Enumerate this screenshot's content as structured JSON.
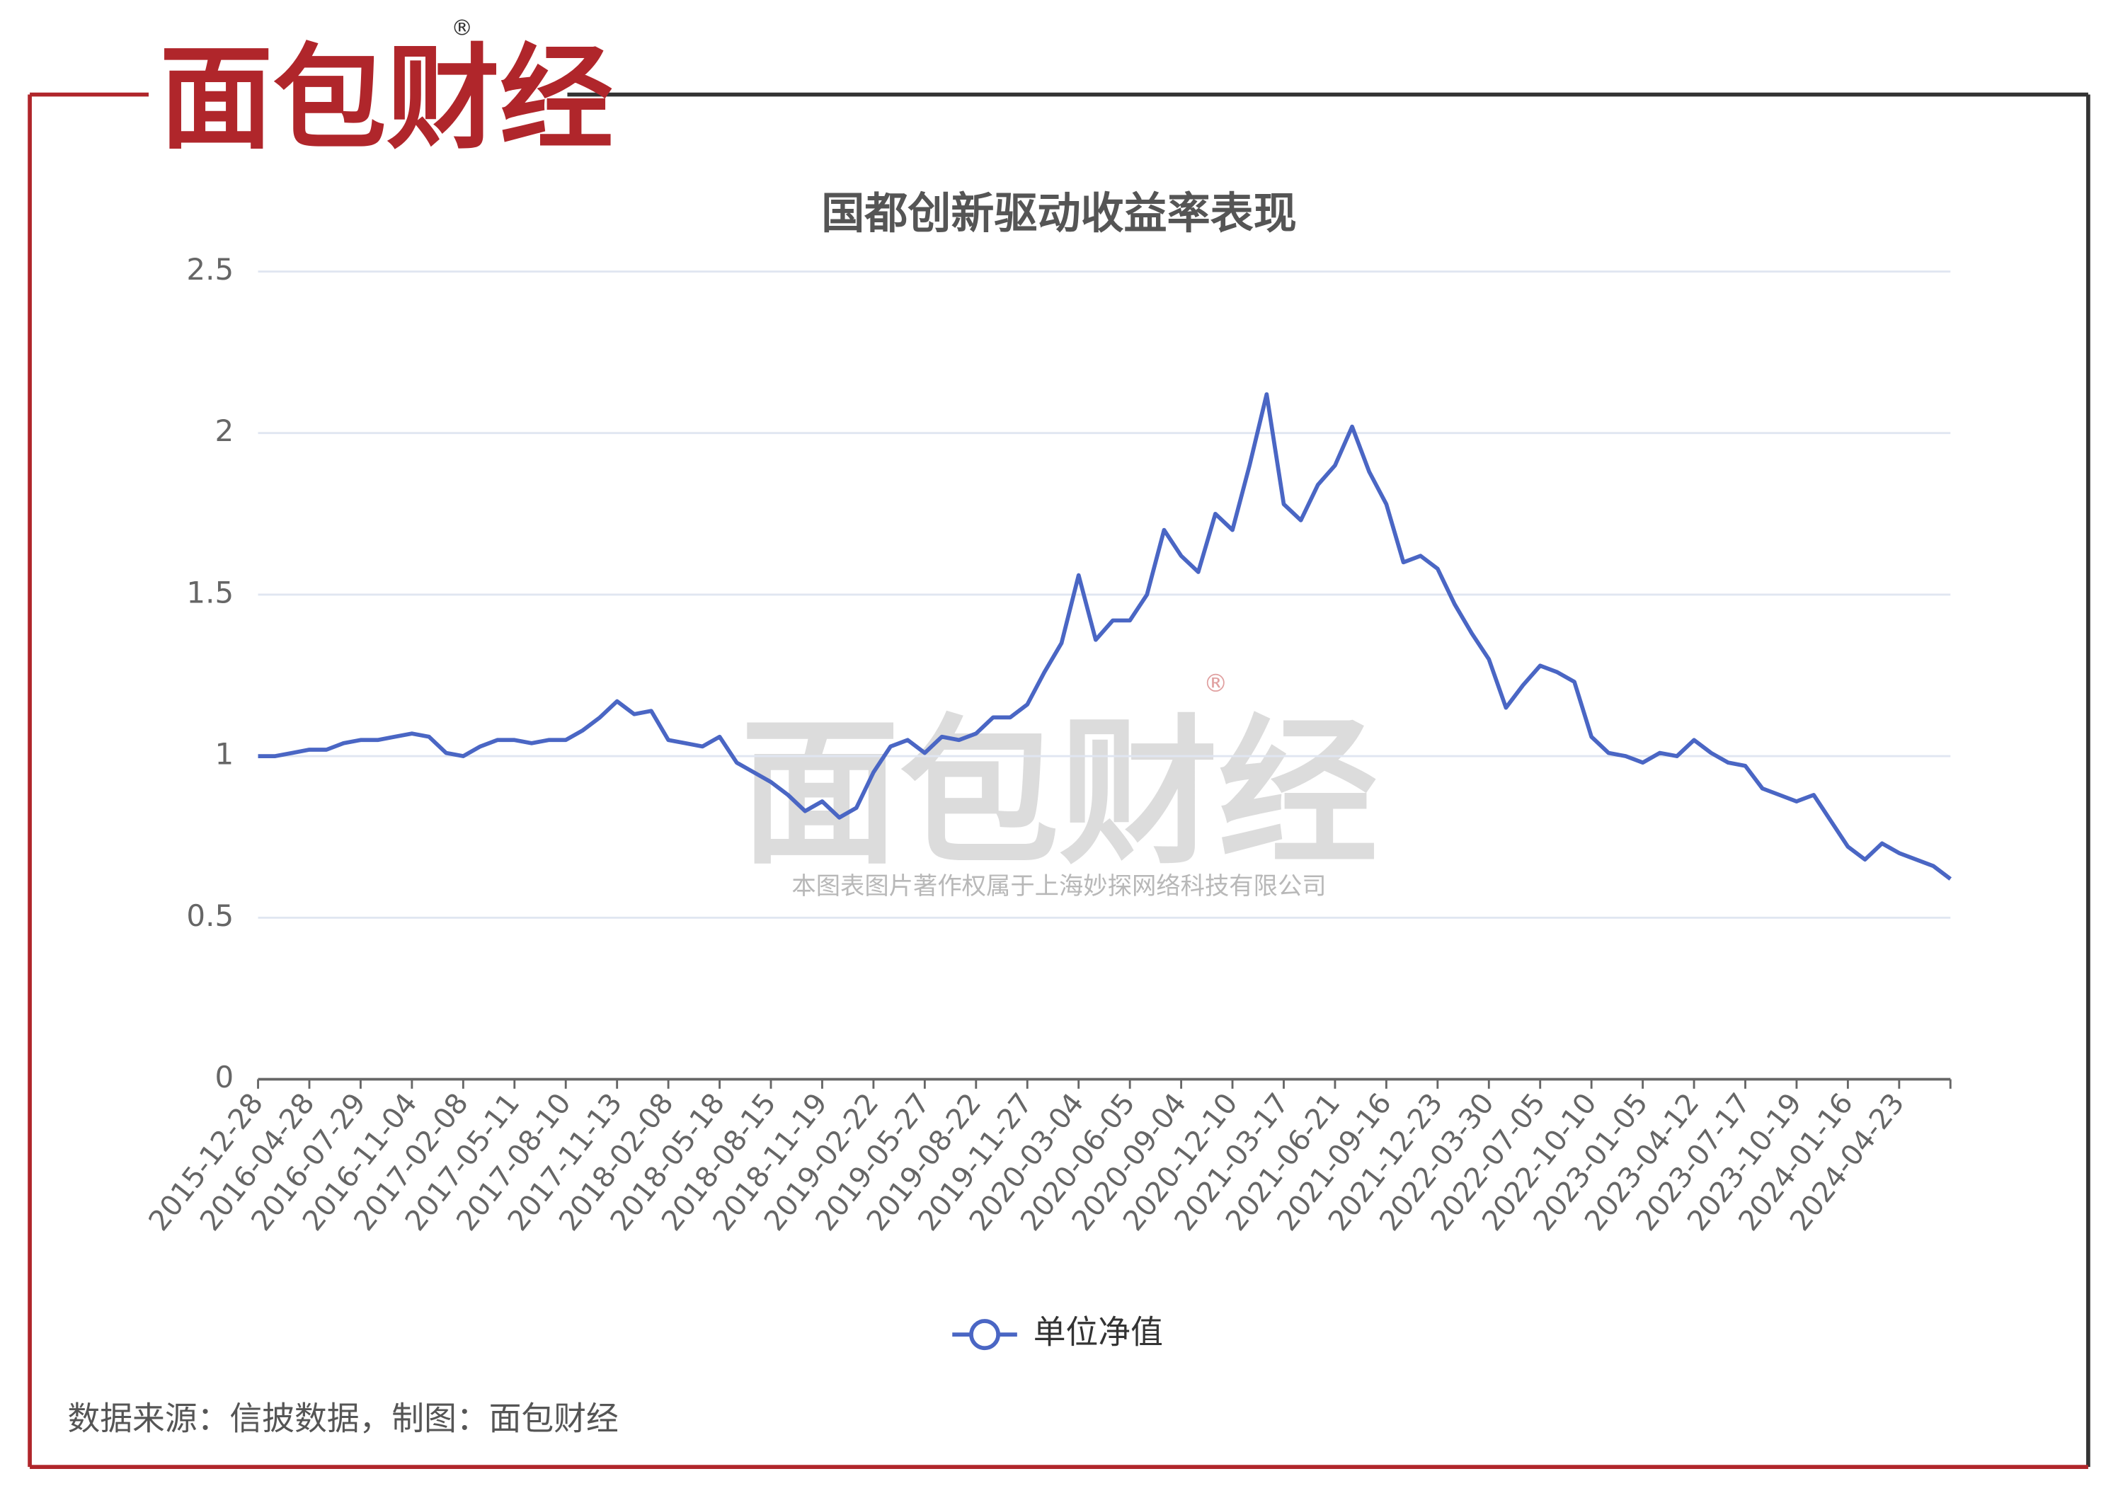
{
  "brand": {
    "logo": "面包财经",
    "registered": "®"
  },
  "chart_data": {
    "type": "line",
    "title": "国都创新驱动收益率表现",
    "categories": [
      "2015-12-28",
      null,
      null,
      "2016-04-28",
      null,
      null,
      "2016-07-29",
      null,
      null,
      "2016-11-04",
      null,
      null,
      "2017-02-08",
      null,
      null,
      "2017-05-11",
      null,
      null,
      "2017-08-10",
      null,
      null,
      "2017-11-13",
      null,
      null,
      "2018-02-08",
      null,
      null,
      "2018-05-18",
      null,
      null,
      "2018-08-15",
      null,
      null,
      "2018-11-19",
      null,
      null,
      "2019-02-22",
      null,
      null,
      "2019-05-27",
      null,
      null,
      "2019-08-22",
      null,
      null,
      "2019-11-27",
      null,
      null,
      "2020-03-04",
      null,
      null,
      "2020-06-05",
      null,
      null,
      "2020-09-04",
      null,
      null,
      "2020-12-10",
      null,
      null,
      "2021-03-17",
      null,
      null,
      "2021-06-21",
      null,
      null,
      "2021-09-16",
      null,
      null,
      "2021-12-23",
      null,
      null,
      "2022-03-30",
      null,
      null,
      "2022-07-05",
      null,
      null,
      "2022-10-10",
      null,
      null,
      "2023-01-05",
      null,
      null,
      "2023-04-12",
      null,
      null,
      "2023-07-17",
      null,
      null,
      "2023-10-19",
      null,
      null,
      "2024-01-16",
      null,
      null,
      "2024-04-23",
      null,
      null,
      null
    ],
    "series": [
      {
        "name": "单位净值",
        "color": "#4a66c4",
        "values": [
          1.0,
          1.0,
          1.01,
          1.02,
          1.02,
          1.04,
          1.05,
          1.05,
          1.06,
          1.07,
          1.06,
          1.01,
          1.0,
          1.03,
          1.05,
          1.05,
          1.04,
          1.05,
          1.05,
          1.08,
          1.12,
          1.17,
          1.13,
          1.14,
          1.05,
          1.04,
          1.03,
          1.06,
          0.98,
          0.95,
          0.92,
          0.88,
          0.83,
          0.86,
          0.81,
          0.84,
          0.95,
          1.03,
          1.05,
          1.01,
          1.06,
          1.05,
          1.07,
          1.12,
          1.12,
          1.16,
          1.26,
          1.35,
          1.56,
          1.36,
          1.42,
          1.42,
          1.5,
          1.7,
          1.62,
          1.57,
          1.75,
          1.7,
          1.9,
          2.12,
          1.78,
          1.73,
          1.84,
          1.9,
          2.02,
          1.88,
          1.78,
          1.6,
          1.62,
          1.58,
          1.47,
          1.38,
          1.3,
          1.15,
          1.22,
          1.28,
          1.26,
          1.23,
          1.06,
          1.01,
          1.0,
          0.98,
          1.01,
          1.0,
          1.05,
          1.01,
          0.98,
          0.97,
          0.9,
          0.88,
          0.86,
          0.88,
          0.8,
          0.72,
          0.68,
          0.73,
          0.7,
          0.68,
          0.66,
          0.62
        ]
      }
    ],
    "ylim": [
      0,
      2.5
    ],
    "yticks": [
      0,
      0.5,
      1,
      1.5,
      2,
      2.5
    ],
    "grid": true,
    "legend": "bottom"
  },
  "watermark": {
    "logo": "面包财经",
    "registered": "®",
    "notice": "本图表图片著作权属于上海妙探网络科技有限公司"
  },
  "footer": {
    "source": "数据来源：信披数据，制图：面包财经"
  }
}
